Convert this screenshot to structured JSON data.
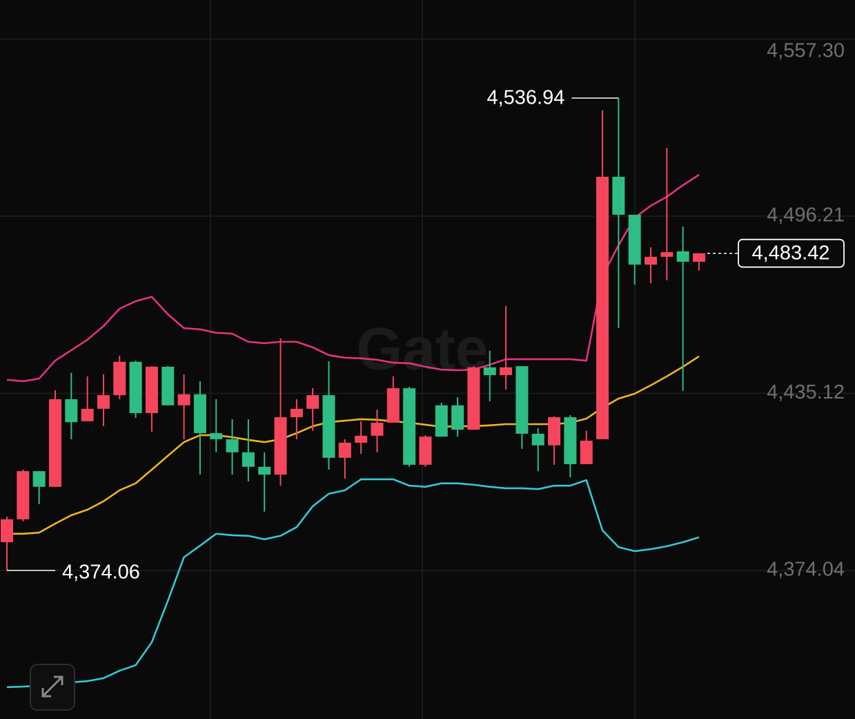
{
  "watermark": "Gate",
  "chart_data": {
    "type": "candlestick",
    "open": [
      4383.8,
      4391.7,
      4408.3,
      4402.9,
      4433.1,
      4425.5,
      4429.8,
      4434.5,
      4446.0,
      4428.3,
      4444.3,
      4431.0,
      4434.8,
      4421.4,
      4419.3,
      4414.8,
      4409.8,
      4407.1,
      4426.9,
      4429.8,
      4434.5,
      4412.9,
      4418.1,
      4420.5,
      4425.0,
      4436.9,
      4410.5,
      4431.0,
      4431.0,
      4422.6,
      4444.1,
      4441.4,
      4444.5,
      4421.2,
      4417.2,
      4426.9,
      4410.7,
      4419.3,
      4509.8,
      4496.7,
      4479.5,
      4482.2,
      4484.1,
      4480.5
    ],
    "high": [
      4392.6,
      4408.8,
      4408.3,
      4436.2,
      4442.2,
      4441.0,
      4441.7,
      4448.1,
      4446.4,
      4444.5,
      4444.5,
      4441.7,
      4439.3,
      4433.1,
      4426.2,
      4426.2,
      4414.8,
      4454.1,
      4433.1,
      4436.9,
      4446.2,
      4419.3,
      4425.5,
      4429.5,
      4441.0,
      4437.4,
      4420.7,
      4431.9,
      4433.8,
      4444.5,
      4449.8,
      4465.3,
      4444.5,
      4423.1,
      4427.2,
      4427.6,
      4422.2,
      4532.7,
      4536.94,
      4496.7,
      4485.5,
      4519.8,
      4492.6,
      4483.42
    ],
    "low": [
      4374.06,
      4391.0,
      4396.9,
      4402.9,
      4419.3,
      4425.5,
      4423.8,
      4433.1,
      4426.7,
      4421.9,
      4431.0,
      4419.3,
      4407.1,
      4414.8,
      4407.1,
      4404.8,
      4394.3,
      4403.3,
      4419.3,
      4422.2,
      4408.8,
      4405.7,
      4414.3,
      4414.8,
      4425.0,
      4409.8,
      4409.8,
      4420.2,
      4420.2,
      4422.6,
      4432.4,
      4436.4,
      4416.0,
      4408.3,
      4410.5,
      4406.2,
      4410.7,
      4419.3,
      4457.6,
      4472.6,
      4473.1,
      4474.1,
      4436.0,
      4477.4
    ],
    "close": [
      4391.7,
      4408.3,
      4402.9,
      4433.1,
      4425.2,
      4429.8,
      4434.5,
      4446.0,
      4428.3,
      4444.3,
      4431.0,
      4434.8,
      4421.4,
      4419.3,
      4414.8,
      4409.8,
      4407.1,
      4426.9,
      4429.8,
      4434.5,
      4412.9,
      4418.1,
      4420.5,
      4425.0,
      4436.9,
      4410.5,
      4420.2,
      4420.2,
      4422.6,
      4444.1,
      4441.4,
      4444.1,
      4421.2,
      4417.2,
      4426.9,
      4410.7,
      4418.8,
      4509.8,
      4496.7,
      4479.5,
      4482.2,
      4483.8,
      4480.5,
      4483.42
    ],
    "up_color": "#f6465d",
    "down_color": "#2ebd85",
    "overlays": [
      {
        "color": "#e3337f",
        "values": [
          4439.8,
          4439.3,
          4440.2,
          4446.4,
          4450.0,
          4453.6,
          4458.3,
          4464.3,
          4466.9,
          4468.4,
          4462.4,
          4457.6,
          4457.2,
          4456.0,
          4455.7,
          4452.9,
          4452.4,
          4452.9,
          4452.9,
          4451.0,
          4448.3,
          4447.4,
          4447.2,
          4446.7,
          4445.7,
          4445.5,
          4444.3,
          4443.3,
          4443.1,
          4443.3,
          4445.0,
          4446.9,
          4446.9,
          4446.9,
          4446.9,
          4446.9,
          4446.4,
          4475.5,
          4486.2,
          4495.7,
          4499.8,
          4502.9,
          4506.9,
          4510.5
        ]
      },
      {
        "color": "#f0b324",
        "values": [
          4386.7,
          4386.7,
          4387.1,
          4390.2,
          4393.1,
          4395.0,
          4397.9,
          4401.7,
          4404.1,
          4408.8,
          4413.6,
          4418.3,
          4420.7,
          4420.7,
          4420.0,
          4419.1,
          4418.3,
          4419.3,
          4421.4,
          4423.8,
          4425.2,
          4425.7,
          4426.2,
          4426.0,
          4425.5,
          4425.0,
          4424.3,
          4423.6,
          4423.8,
          4423.8,
          4424.1,
          4424.5,
          4424.5,
          4424.5,
          4424.5,
          4425.0,
          4426.4,
          4430.2,
          4433.3,
          4435.0,
          4437.9,
          4441.0,
          4444.3,
          4447.9
        ]
      },
      {
        "color": "#35c9d3",
        "values": [
          4333.8,
          4334.0,
          4334.3,
          4335.0,
          4335.5,
          4335.9,
          4336.9,
          4339.5,
          4341.4,
          4349.3,
          4363.6,
          4378.6,
          4382.6,
          4386.7,
          4386.2,
          4386.0,
          4384.8,
          4386.0,
          4389.0,
          4396.2,
          4400.5,
          4401.7,
          4405.5,
          4405.5,
          4405.5,
          4403.3,
          4402.9,
          4404.1,
          4404.1,
          4403.6,
          4402.9,
          4402.4,
          4402.4,
          4402.1,
          4403.3,
          4403.3,
          4405.2,
          4387.9,
          4382.1,
          4380.7,
          4381.4,
          4382.4,
          4383.8,
          4385.5
        ]
      }
    ],
    "ylim": [
      4322.84,
      4570.75
    ],
    "yticks": [
      {
        "value": 4374.04,
        "label": "4,374.04"
      },
      {
        "value": 4435.12,
        "label": "4,435.12"
      },
      {
        "value": 4496.21,
        "label": "4,496.21"
      },
      {
        "value": 4557.3,
        "label": "4,557.30"
      }
    ],
    "grid": true,
    "annotations": {
      "high": "4,536.94",
      "low": "4,374.06",
      "last": "4,483.42"
    }
  }
}
